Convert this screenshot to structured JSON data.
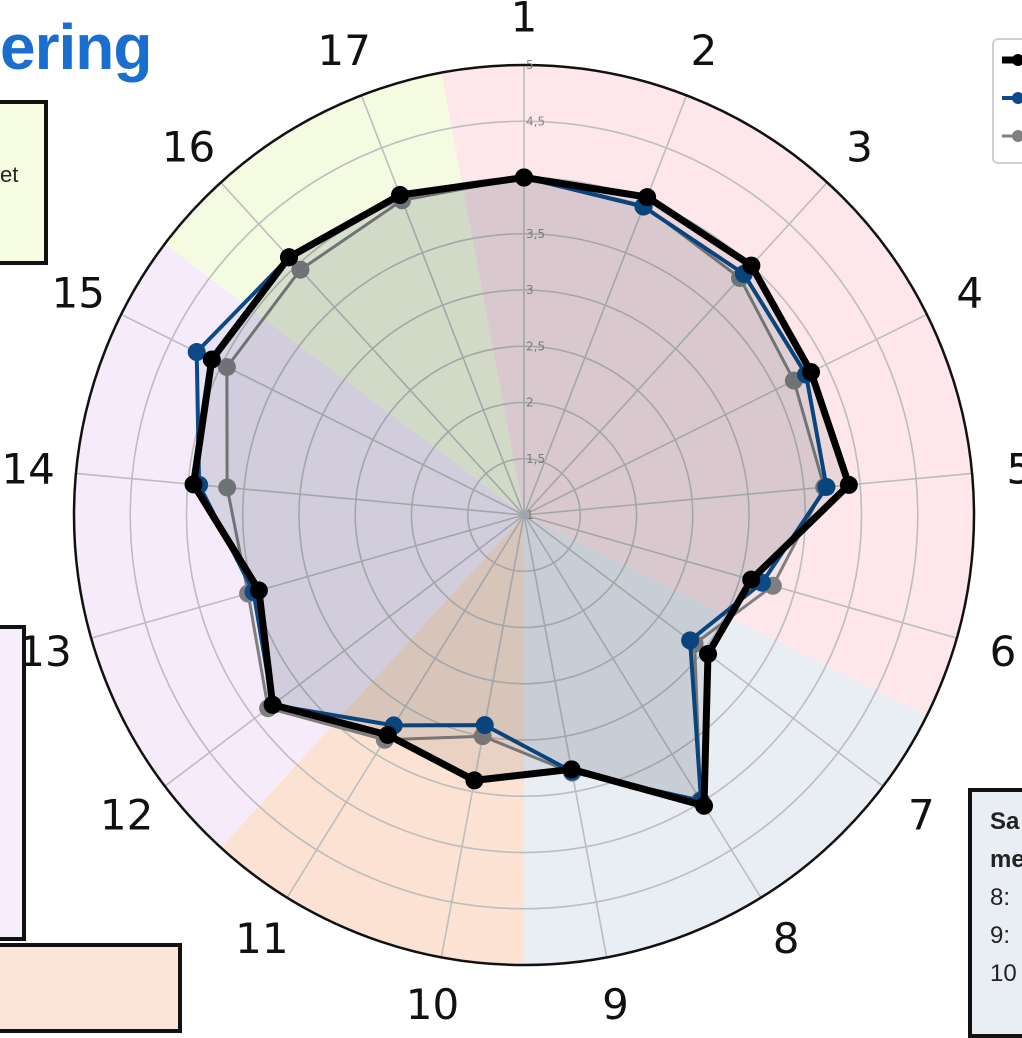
{
  "title_fragment": "ering",
  "side_notes": {
    "top_left_fragment": "et",
    "right_box_lines": [
      "Sa",
      "me",
      "8:",
      "9:",
      "10"
    ]
  },
  "colors": {
    "series_black": "#000000",
    "series_blue": "#0b4a86",
    "series_gray": "#7f7f7f",
    "sector_pink": "#fde7ea",
    "sector_yellow": "#f4fbe0",
    "sector_purple": "#f5ebfb",
    "sector_orange": "#fbe2d2",
    "sector_blue": "#e9edf4",
    "title": "#1a6fce"
  },
  "chart_data": {
    "type": "radar",
    "categories": [
      "1",
      "2",
      "3",
      "4",
      "5",
      "6",
      "7",
      "8",
      "9",
      "10",
      "11",
      "12",
      "13",
      "14",
      "15",
      "16",
      "17"
    ],
    "radial_ticks": [
      "1",
      "1,5",
      "2",
      "2,5",
      "3",
      "3,5",
      "4",
      "4,5",
      "5"
    ],
    "rlim": [
      1,
      5
    ],
    "series": [
      {
        "values": [
          4.0,
          4.03,
          4.0,
          3.85,
          3.9,
          3.1,
          3.05,
          4.04,
          3.3,
          3.4,
          3.3,
          3.8,
          3.45,
          3.95,
          4.1,
          4.1,
          4.05
        ]
      },
      {
        "values": [
          4.0,
          3.94,
          3.9,
          3.8,
          3.7,
          3.2,
          2.85,
          3.99,
          3.32,
          2.9,
          3.2,
          3.8,
          3.5,
          3.9,
          4.25,
          4.1,
          4.05
        ]
      },
      {
        "values": [
          4.0,
          3.95,
          3.85,
          3.68,
          3.68,
          3.3,
          2.9,
          3.98,
          3.33,
          3.0,
          3.35,
          3.85,
          3.55,
          3.65,
          3.95,
          3.95,
          4.0
        ]
      }
    ],
    "sectors": [
      {
        "from": "1",
        "to": "6",
        "color": "pink"
      },
      {
        "from": "7",
        "to": "9",
        "color": "blue"
      },
      {
        "from": "10",
        "to": "11",
        "color": "orange"
      },
      {
        "from": "12",
        "to": "15",
        "color": "purple"
      },
      {
        "from": "16",
        "to": "17",
        "color": "yellow"
      }
    ],
    "grid": true
  }
}
